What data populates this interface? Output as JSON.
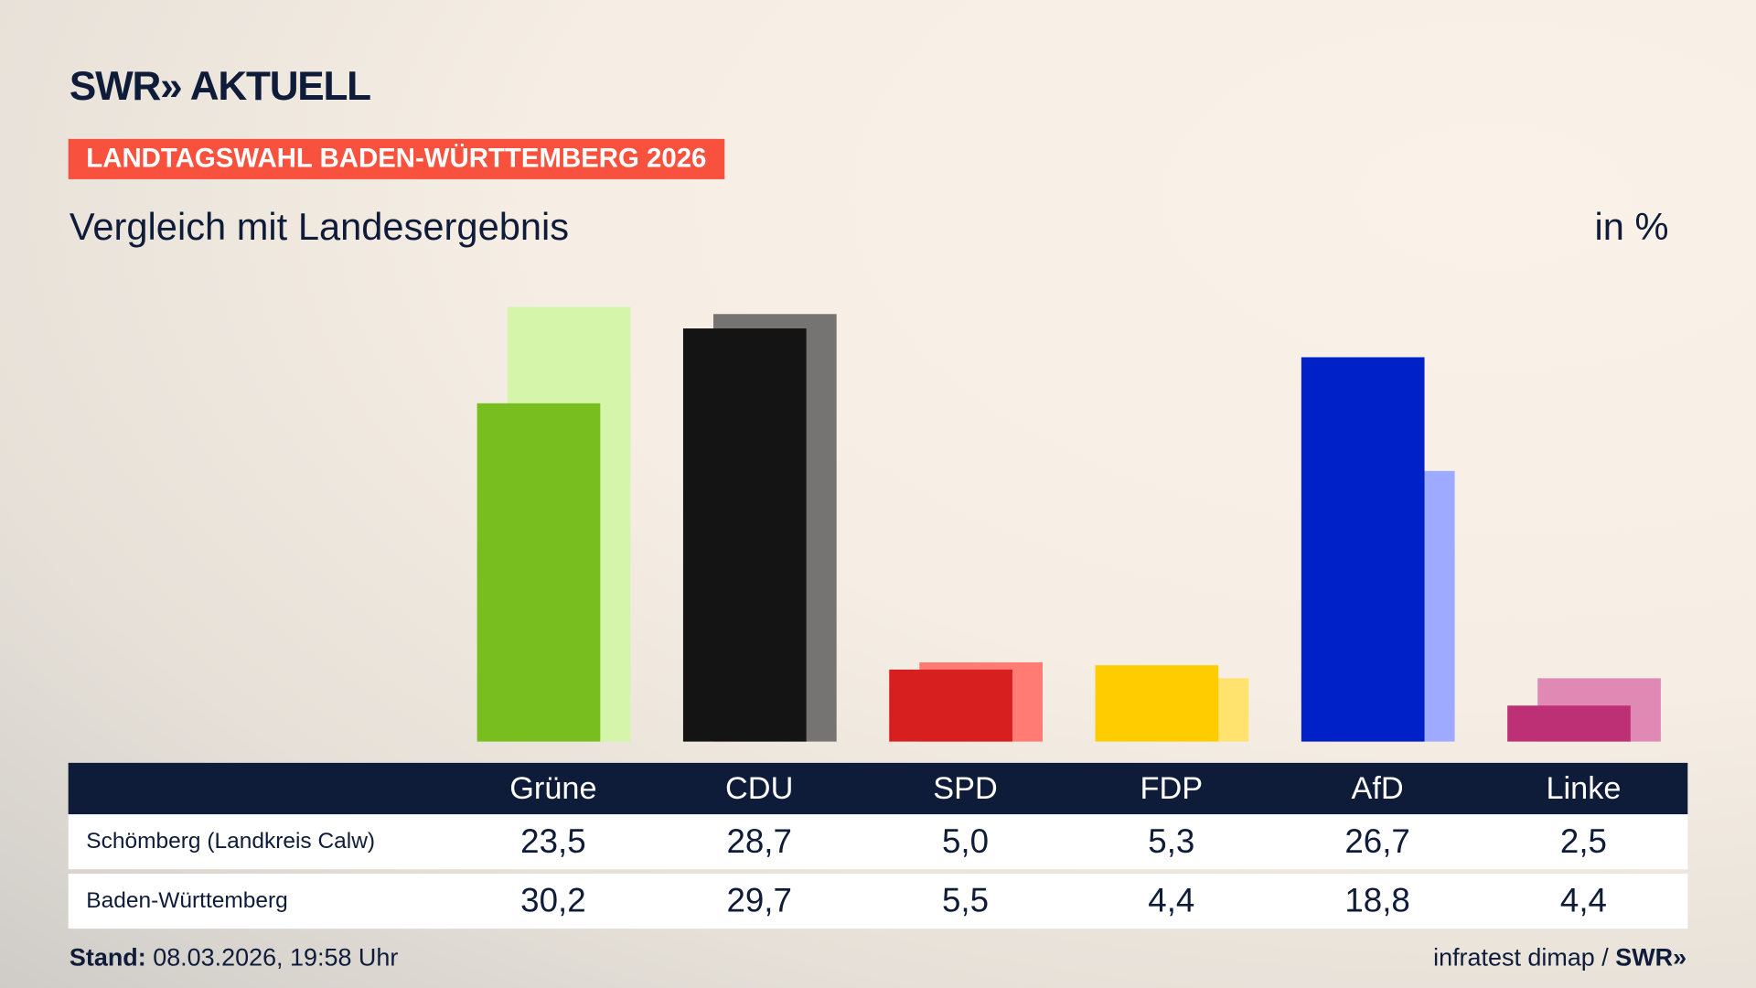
{
  "header": {
    "logo": "SWR» AKTUELL",
    "kicker": "LANDTAGSWAHL BADEN-WÜRTTEMBERG 2026",
    "title": "Vergleich mit Landesergebnis",
    "unit": "in %"
  },
  "chart_data": {
    "type": "bar",
    "title": "Vergleich mit Landesergebnis",
    "ylabel": "in %",
    "categories": [
      "Grüne",
      "CDU",
      "SPD",
      "FDP",
      "AfD",
      "Linke"
    ],
    "series": [
      {
        "name": "Schömberg (Landkreis Calw)",
        "values": [
          23.5,
          28.7,
          5.0,
          5.3,
          26.7,
          2.5
        ],
        "display": [
          "23,5",
          "28,7",
          "5,0",
          "5,3",
          "26,7",
          "2,5"
        ],
        "colors": [
          "#78be1e",
          "#141414",
          "#d71f1f",
          "#ffcc00",
          "#0020c8",
          "#be3075"
        ]
      },
      {
        "name": "Baden-Württemberg",
        "values": [
          30.2,
          29.7,
          5.5,
          4.4,
          18.8,
          4.4
        ],
        "display": [
          "30,2",
          "29,7",
          "5,5",
          "4,4",
          "18,8",
          "4,4"
        ],
        "colors": [
          "#d5f5aa",
          "#767473",
          "#ff7b73",
          "#ffe36e",
          "#9eaaff",
          "#e089b5"
        ]
      }
    ],
    "grid": false
  },
  "footer": {
    "stand_label": "Stand:",
    "stand_value": " 08.03.2026, 19:58 Uhr",
    "source": "infratest dimap / ",
    "source_logo": "SWR»"
  }
}
